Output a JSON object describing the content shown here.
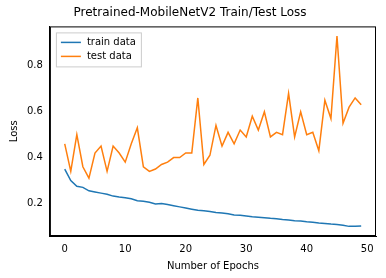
{
  "chart_data": {
    "type": "line",
    "title": "Pretrained-MobileNetV2 Train/Test Loss",
    "x_label": "Number of Epochs",
    "y_label": "Loss",
    "x": [
      0,
      1,
      2,
      3,
      4,
      5,
      6,
      7,
      8,
      9,
      10,
      11,
      12,
      13,
      14,
      15,
      16,
      17,
      18,
      19,
      20,
      21,
      22,
      23,
      24,
      25,
      26,
      27,
      28,
      29,
      30,
      31,
      32,
      33,
      34,
      35,
      36,
      37,
      38,
      39,
      40,
      41,
      42,
      43,
      44,
      45,
      46,
      47,
      48,
      49
    ],
    "series": [
      {
        "name": "train data",
        "color": "#1f77b4",
        "values": [
          0.35,
          0.3,
          0.275,
          0.27,
          0.255,
          0.25,
          0.245,
          0.24,
          0.232,
          0.228,
          0.225,
          0.22,
          0.212,
          0.21,
          0.205,
          0.198,
          0.2,
          0.195,
          0.19,
          0.185,
          0.18,
          0.175,
          0.17,
          0.168,
          0.165,
          0.16,
          0.158,
          0.155,
          0.15,
          0.148,
          0.145,
          0.142,
          0.14,
          0.138,
          0.135,
          0.133,
          0.13,
          0.128,
          0.125,
          0.123,
          0.12,
          0.118,
          0.115,
          0.113,
          0.11,
          0.108,
          0.105,
          0.1,
          0.1,
          0.102
        ]
      },
      {
        "name": "test data",
        "color": "#ff7f0e",
        "values": [
          0.46,
          0.34,
          0.5,
          0.36,
          0.31,
          0.42,
          0.45,
          0.34,
          0.45,
          0.42,
          0.38,
          0.46,
          0.53,
          0.36,
          0.34,
          0.35,
          0.37,
          0.38,
          0.4,
          0.4,
          0.42,
          0.42,
          0.66,
          0.37,
          0.41,
          0.54,
          0.45,
          0.51,
          0.46,
          0.52,
          0.49,
          0.58,
          0.52,
          0.6,
          0.49,
          0.51,
          0.5,
          0.68,
          0.49,
          0.6,
          0.5,
          0.51,
          0.43,
          0.65,
          0.57,
          0.93,
          0.55,
          0.62,
          0.66,
          0.63
        ]
      }
    ],
    "xlim": [
      -2.45,
      51.45
    ],
    "xticks": [
      0,
      10,
      20,
      30,
      40,
      50
    ],
    "ylim": [
      0.058,
      0.972
    ],
    "yticks": [
      0.2,
      0.4,
      0.6,
      0.8
    ],
    "grid": false,
    "legend": "upper left"
  }
}
